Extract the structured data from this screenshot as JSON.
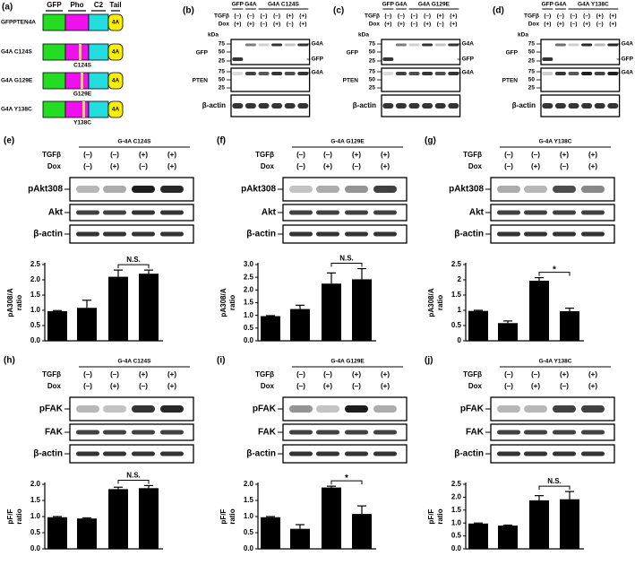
{
  "panel_a": {
    "label": "(a)",
    "domains": [
      "GFP",
      "Pho",
      "C2",
      "Tail"
    ],
    "constructs": [
      {
        "name": "GFPPTEN4A",
        "tail": "4A"
      },
      {
        "name": "G4A C124S",
        "mutation": "C124S",
        "tail": "4A"
      },
      {
        "name": "G4A G129E",
        "mutation": "G129E",
        "tail": "4A"
      },
      {
        "name": "G4A Y138C",
        "mutation": "Y138C",
        "tail": "4A"
      }
    ]
  },
  "expression_blots": [
    {
      "label": "(b)",
      "groups": [
        "GFP",
        "G4A",
        "G4A C124S"
      ],
      "treatments": [
        {
          "name": "TGFβ",
          "signs": [
            "(–)",
            "(–)",
            "(–)",
            "(–)",
            "(+)",
            "(+)"
          ]
        },
        {
          "name": "Dox",
          "signs": [
            "(+)",
            "(+)",
            "(–)",
            "(+)",
            "(–)",
            "(+)"
          ]
        }
      ],
      "unit": "kDa",
      "blots": [
        {
          "name": "GFP",
          "markers": [
            75,
            50,
            25
          ],
          "bands": [
            "G4A",
            "GFP"
          ]
        },
        {
          "name": "PTEN",
          "markers": [
            75,
            50,
            25
          ],
          "bands": [
            "G4A"
          ]
        },
        {
          "name": "β-actin"
        }
      ]
    },
    {
      "label": "(c)",
      "groups": [
        "GFP",
        "G4A",
        "G4A G129E"
      ],
      "treatments": [
        {
          "name": "TGFβ",
          "signs": [
            "(–)",
            "(–)",
            "(–)",
            "(–)",
            "(+)",
            "(+)"
          ]
        },
        {
          "name": "Dox",
          "signs": [
            "(+)",
            "(+)",
            "(–)",
            "(+)",
            "(–)",
            "(+)"
          ]
        }
      ],
      "unit": "kDa",
      "blots": [
        {
          "name": "GFP",
          "markers": [
            75,
            50,
            25
          ],
          "bands": [
            "G4A",
            "GFP"
          ]
        },
        {
          "name": "PTEN",
          "markers": [
            75,
            50,
            25
          ],
          "bands": [
            "G4A"
          ]
        },
        {
          "name": "β-actin"
        }
      ]
    },
    {
      "label": "(d)",
      "groups": [
        "GFP",
        "G4A",
        "G4A Y138C"
      ],
      "treatments": [
        {
          "name": "TGFβ",
          "signs": [
            "(–)",
            "(–)",
            "(–)",
            "(–)",
            "(+)",
            "(+)"
          ]
        },
        {
          "name": "Dox",
          "signs": [
            "(+)",
            "(+)",
            "(–)",
            "(+)",
            "(–)",
            "(+)"
          ]
        }
      ],
      "unit": "kDa",
      "blots": [
        {
          "name": "GFP",
          "markers": [
            75,
            50,
            25
          ],
          "bands": [
            "G4A",
            "GFP"
          ]
        },
        {
          "name": "PTEN",
          "markers": [
            75,
            50,
            25
          ],
          "bands": [
            "G4A"
          ]
        },
        {
          "name": "β-actin"
        }
      ]
    }
  ],
  "chart_data": [
    {
      "type": "bar",
      "panel": "(e)",
      "title": "G-4A C124S",
      "treatments": [
        {
          "name": "TGFβ",
          "signs": [
            "(–)",
            "(–)",
            "(+)",
            "(+)"
          ]
        },
        {
          "name": "Dox",
          "signs": [
            "(–)",
            "(+)",
            "(–)",
            "(+)"
          ]
        }
      ],
      "blots": [
        "pAkt308",
        "Akt",
        "β-actin"
      ],
      "ylabel": [
        "pA308/A",
        "ratio"
      ],
      "values": [
        0.97,
        1.08,
        2.1,
        2.2
      ],
      "errors": [
        0.02,
        0.25,
        0.22,
        0.12
      ],
      "color": "#000000",
      "ylim": [
        0,
        2.5
      ],
      "yticks": [
        {
          "value": 0,
          "label": "0.0"
        },
        0.5,
        {
          "value": 1,
          "label": "1.0"
        },
        1.5,
        {
          "value": 2,
          "label": "2.0"
        },
        2.5
      ],
      "annotation": "N.S."
    },
    {
      "type": "bar",
      "panel": "(f)",
      "title": "G-4A G129E",
      "treatments": [
        {
          "name": "TGFβ",
          "signs": [
            "(–)",
            "(–)",
            "(+)",
            "(+)"
          ]
        },
        {
          "name": "Dox",
          "signs": [
            "(–)",
            "(+)",
            "(–)",
            "(+)"
          ]
        }
      ],
      "blots": [
        "pAkt308",
        "Akt",
        "β-actin"
      ],
      "ylabel": [
        "pA308/A",
        "ratio"
      ],
      "values": [
        0.97,
        1.25,
        2.25,
        2.42
      ],
      "errors": [
        0.02,
        0.15,
        0.42,
        0.42
      ],
      "color": "#000000",
      "ylim": [
        0,
        3
      ],
      "yticks": [
        {
          "value": 0,
          "label": "0.0"
        },
        0.5,
        {
          "value": 1,
          "label": "1.0"
        },
        1.5,
        {
          "value": 2,
          "label": "2.0"
        },
        2.5,
        {
          "value": 3,
          "label": "3.0"
        }
      ],
      "annotation": "N.S."
    },
    {
      "type": "bar",
      "panel": "(g)",
      "title": "G-4A Y138C",
      "treatments": [
        {
          "name": "TGFβ",
          "signs": [
            "(–)",
            "(–)",
            "(+)",
            "(+)"
          ]
        },
        {
          "name": "Dox",
          "signs": [
            "(–)",
            "(+)",
            "(–)",
            "(+)"
          ]
        }
      ],
      "blots": [
        "pAkt308",
        "Akt",
        "β-actin"
      ],
      "ylabel": [
        "pA308/A",
        "ratio"
      ],
      "values": [
        0.98,
        0.58,
        1.97,
        0.97
      ],
      "errors": [
        0.02,
        0.07,
        0.1,
        0.1
      ],
      "color": "#000000",
      "ylim": [
        0,
        2.5
      ],
      "yticks": [
        0,
        0.5,
        1,
        1.5,
        2,
        2.5
      ],
      "annotation": "*"
    },
    {
      "type": "bar",
      "panel": "(h)",
      "title": "G-4A C124S",
      "treatments": [
        {
          "name": "TGFβ",
          "signs": [
            "(–)",
            "(–)",
            "(+)",
            "(+)"
          ]
        },
        {
          "name": "Dox",
          "signs": [
            "(–)",
            "(+)",
            "(–)",
            "(+)"
          ]
        }
      ],
      "blots": [
        "pFAK",
        "FAK",
        "β-actin"
      ],
      "ylabel": [
        "pF/F",
        "ratio"
      ],
      "values": [
        0.98,
        0.94,
        1.85,
        1.88
      ],
      "errors": [
        0.02,
        0.02,
        0.06,
        0.08
      ],
      "color": "#000000",
      "ylim": [
        0,
        2
      ],
      "yticks": [
        {
          "value": 0,
          "label": "0.0"
        },
        0.5,
        {
          "value": 1,
          "label": "1.0"
        },
        1.5,
        {
          "value": 2,
          "label": "2.0"
        }
      ],
      "annotation": "N.S."
    },
    {
      "type": "bar",
      "panel": "(i)",
      "title": "G-4A G129E",
      "treatments": [
        {
          "name": "TGFβ",
          "signs": [
            "(–)",
            "(–)",
            "(+)",
            "(+)"
          ]
        },
        {
          "name": "Dox",
          "signs": [
            "(–)",
            "(+)",
            "(–)",
            "(+)"
          ]
        }
      ],
      "blots": [
        "pFAK",
        "FAK",
        "β-actin"
      ],
      "ylabel": [
        "pF/F",
        "ratio"
      ],
      "values": [
        0.98,
        0.62,
        1.9,
        1.08
      ],
      "errors": [
        0.02,
        0.13,
        0.04,
        0.25
      ],
      "color": "#000000",
      "ylim": [
        0,
        2
      ],
      "yticks": [
        {
          "value": 0,
          "label": "0.0"
        },
        0.5,
        {
          "value": 1,
          "label": "1.0"
        },
        1.5,
        {
          "value": 2,
          "label": "2.0"
        }
      ],
      "annotation": "*"
    },
    {
      "type": "bar",
      "panel": "(j)",
      "title": "G-4A Y138C",
      "treatments": [
        {
          "name": "TGFβ",
          "signs": [
            "(–)",
            "(–)",
            "(+)",
            "(+)"
          ]
        },
        {
          "name": "Dox",
          "signs": [
            "(–)",
            "(+)",
            "(–)",
            "(+)"
          ]
        }
      ],
      "blots": [
        "pFAK",
        "FAK",
        "β-actin"
      ],
      "ylabel": [
        "pF/F",
        "ratio"
      ],
      "values": [
        0.98,
        0.9,
        1.88,
        1.92
      ],
      "errors": [
        0.02,
        0.02,
        0.18,
        0.3
      ],
      "color": "#000000",
      "ylim": [
        0,
        2.5
      ],
      "yticks": [
        {
          "value": 0,
          "label": "0.0"
        },
        0.5,
        {
          "value": 1,
          "label": "1.0"
        },
        1.5,
        {
          "value": 2,
          "label": "2.0"
        },
        2.5
      ],
      "annotation": "N.S."
    }
  ]
}
